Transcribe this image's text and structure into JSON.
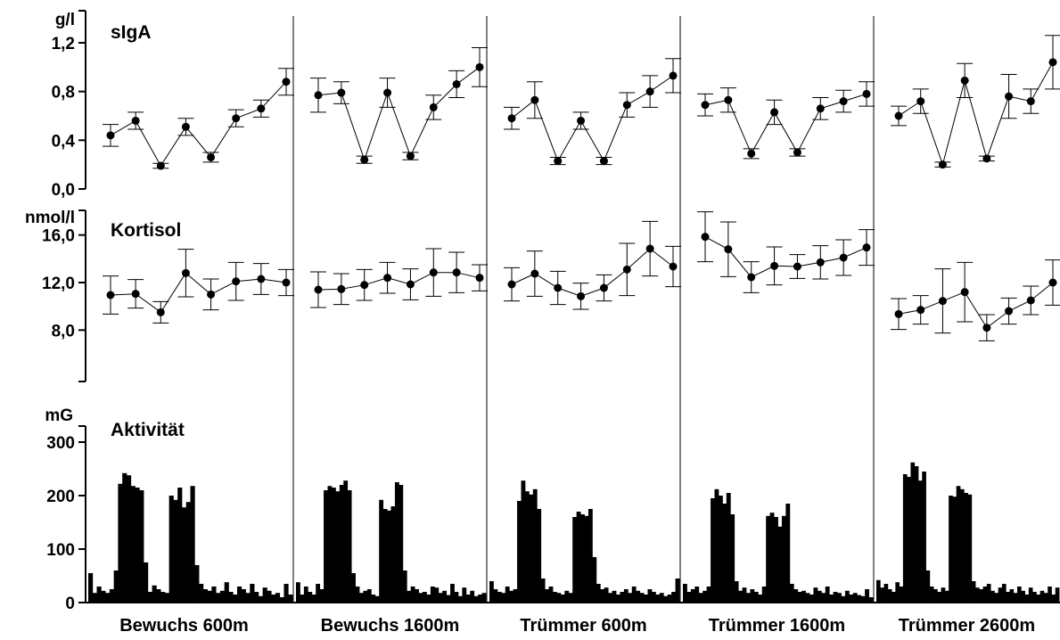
{
  "chart_data": {
    "type": "line",
    "conditions": [
      "Bewuchs 600m",
      "Bewuchs 1600m",
      "Trümmer 600m",
      "Trümmer 1600m",
      "Trümmer 2600m"
    ],
    "panels": [
      {
        "id": "siga",
        "type": "line",
        "title": "sIgA",
        "unit": "g/l",
        "ylim": [
          0.0,
          1.2
        ],
        "ticks": [
          {
            "value": 0.0,
            "label": "0,0"
          },
          {
            "value": 0.4,
            "label": "0,4"
          },
          {
            "value": 0.8,
            "label": "0,8"
          },
          {
            "value": 1.2,
            "label": "1,2"
          }
        ],
        "series": [
          {
            "values": [
              0.44,
              0.56,
              0.19,
              0.51,
              0.26,
              0.58,
              0.66,
              0.88
            ],
            "errors": [
              0.09,
              0.07,
              0.02,
              0.07,
              0.04,
              0.07,
              0.07,
              0.11
            ]
          },
          {
            "values": [
              0.77,
              0.79,
              0.24,
              0.79,
              0.27,
              0.67,
              0.86,
              1.0
            ],
            "errors": [
              0.14,
              0.09,
              0.03,
              0.12,
              0.03,
              0.1,
              0.11,
              0.16
            ]
          },
          {
            "values": [
              0.58,
              0.73,
              0.23,
              0.56,
              0.23,
              0.69,
              0.8,
              0.93
            ],
            "errors": [
              0.09,
              0.15,
              0.03,
              0.07,
              0.03,
              0.1,
              0.13,
              0.14
            ]
          },
          {
            "values": [
              0.69,
              0.73,
              0.29,
              0.63,
              0.3,
              0.66,
              0.72,
              0.78
            ],
            "errors": [
              0.09,
              0.1,
              0.04,
              0.1,
              0.03,
              0.09,
              0.09,
              0.1
            ]
          },
          {
            "values": [
              0.6,
              0.72,
              0.2,
              0.89,
              0.25,
              0.76,
              0.72,
              1.04
            ],
            "errors": [
              0.08,
              0.1,
              0.02,
              0.14,
              0.02,
              0.18,
              0.1,
              0.22
            ]
          }
        ]
      },
      {
        "id": "kortisol",
        "type": "line",
        "title": "Kortisol",
        "unit": "nmol/l",
        "ylim": [
          6.0,
          16.8
        ],
        "ticks": [
          {
            "value": 8.0,
            "label": "8,0"
          },
          {
            "value": 12.0,
            "label": "12,0"
          },
          {
            "value": 16.0,
            "label": "16,0"
          }
        ],
        "series": [
          {
            "values": [
              10.95,
              11.05,
              9.5,
              12.8,
              11.0,
              12.1,
              12.3,
              12.0
            ],
            "errors": [
              1.6,
              1.2,
              0.9,
              2.0,
              1.3,
              1.6,
              1.3,
              1.1
            ]
          },
          {
            "values": [
              11.4,
              11.45,
              11.8,
              12.4,
              11.85,
              12.85,
              12.85,
              12.4
            ],
            "errors": [
              1.5,
              1.3,
              1.3,
              1.3,
              1.3,
              2.0,
              1.7,
              1.1
            ]
          },
          {
            "values": [
              11.85,
              12.75,
              11.55,
              10.85,
              11.55,
              13.1,
              14.85,
              13.35
            ],
            "errors": [
              1.4,
              1.9,
              1.4,
              1.1,
              1.1,
              2.2,
              2.3,
              1.7
            ]
          },
          {
            "values": [
              15.85,
              14.8,
              12.45,
              13.4,
              13.35,
              13.7,
              14.1,
              14.95
            ],
            "errors": [
              2.1,
              2.3,
              1.3,
              1.6,
              1.0,
              1.4,
              1.5,
              1.5
            ]
          },
          {
            "values": [
              9.35,
              9.7,
              10.45,
              11.2,
              8.2,
              9.6,
              10.5,
              12.0
            ],
            "errors": [
              1.3,
              1.2,
              2.7,
              2.5,
              1.1,
              1.1,
              1.2,
              1.9
            ]
          }
        ]
      },
      {
        "id": "aktivitaet",
        "type": "bar",
        "title": "Aktivität",
        "unit": "mG",
        "ylim": [
          0,
          300
        ],
        "ticks": [
          {
            "value": 0,
            "label": "0"
          },
          {
            "value": 100,
            "label": "100"
          },
          {
            "value": 200,
            "label": "200"
          },
          {
            "value": 300,
            "label": "300"
          }
        ],
        "series": [
          {
            "values": [
              55,
              18,
              30,
              22,
              18,
              25,
              60,
              222,
              242,
              238,
              218,
              215,
              210,
              75,
              20,
              32,
              25,
              20,
              18,
              200,
              192,
              215,
              178,
              188,
              218,
              70,
              35,
              25,
              22,
              30,
              18,
              22,
              38,
              20,
              15,
              30,
              25,
              18,
              35,
              20,
              12,
              28,
              22,
              15,
              18,
              10,
              35,
              15
            ]
          },
          {
            "values": [
              38,
              15,
              30,
              20,
              15,
              35,
              25,
              210,
              218,
              215,
              208,
              220,
              228,
              210,
              55,
              30,
              18,
              22,
              25,
              15,
              12,
              192,
              175,
              172,
              180,
              225,
              220,
              60,
              22,
              30,
              25,
              18,
              20,
              15,
              30,
              28,
              18,
              22,
              14,
              35,
              20,
              12,
              28,
              15,
              22,
              12,
              15,
              18
            ]
          },
          {
            "values": [
              40,
              25,
              20,
              18,
              30,
              22,
              25,
              190,
              228,
              208,
              202,
              212,
              175,
              45,
              25,
              30,
              20,
              18,
              15,
              22,
              18,
              160,
              170,
              165,
              162,
              175,
              85,
              35,
              25,
              28,
              18,
              22,
              15,
              20,
              25,
              18,
              30,
              22,
              18,
              15,
              25,
              20,
              15,
              18,
              12,
              15,
              20,
              45
            ]
          },
          {
            "values": [
              35,
              20,
              25,
              30,
              18,
              22,
              30,
              195,
              212,
              200,
              185,
              205,
              165,
              40,
              22,
              28,
              18,
              25,
              20,
              15,
              30,
              162,
              168,
              160,
              142,
              162,
              185,
              35,
              25,
              20,
              22,
              18,
              15,
              28,
              22,
              18,
              30,
              15,
              20,
              18,
              12,
              22,
              15,
              18,
              14,
              12,
              25,
              10
            ]
          },
          {
            "values": [
              42,
              28,
              35,
              25,
              20,
              38,
              30,
              240,
              235,
              262,
              255,
              228,
              245,
              60,
              30,
              25,
              20,
              28,
              22,
              200,
              198,
              218,
              212,
              205,
              202,
              40,
              28,
              25,
              30,
              35,
              22,
              18,
              28,
              35,
              20,
              25,
              18,
              30,
              22,
              15,
              28,
              20,
              15,
              22,
              18,
              30,
              15,
              28
            ]
          }
        ]
      }
    ]
  }
}
